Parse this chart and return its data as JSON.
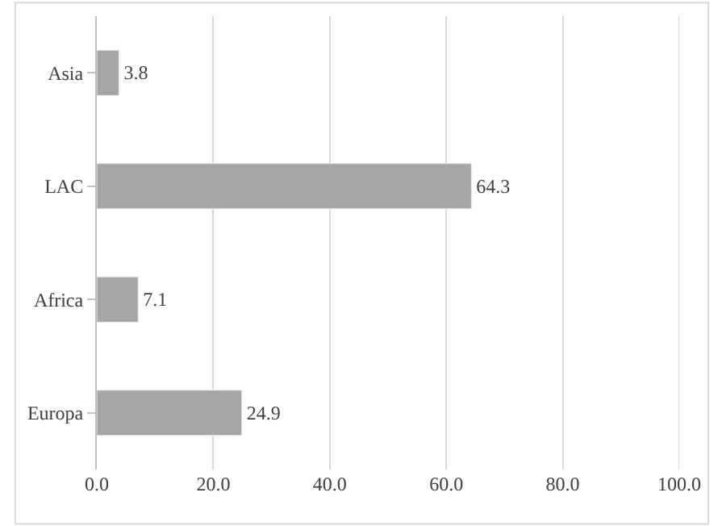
{
  "chart_data": {
    "type": "bar",
    "orientation": "horizontal",
    "categories": [
      "Asia",
      "LAC",
      "Africa",
      "Europa"
    ],
    "values": [
      3.8,
      64.3,
      7.1,
      24.9
    ],
    "value_labels": [
      "3.8",
      "64.3",
      "7.1",
      "24.9"
    ],
    "color": "#a6a6a6",
    "xlim": [
      0,
      100
    ],
    "xticks": [
      {
        "value": 0,
        "label": "0.0"
      },
      {
        "value": 20,
        "label": "20.0"
      },
      {
        "value": 40,
        "label": "40.0"
      },
      {
        "value": 60,
        "label": "60.0"
      },
      {
        "value": 80,
        "label": "80.0"
      },
      {
        "value": 100,
        "label": "100.0"
      }
    ],
    "grid": "x",
    "legend": false
  }
}
